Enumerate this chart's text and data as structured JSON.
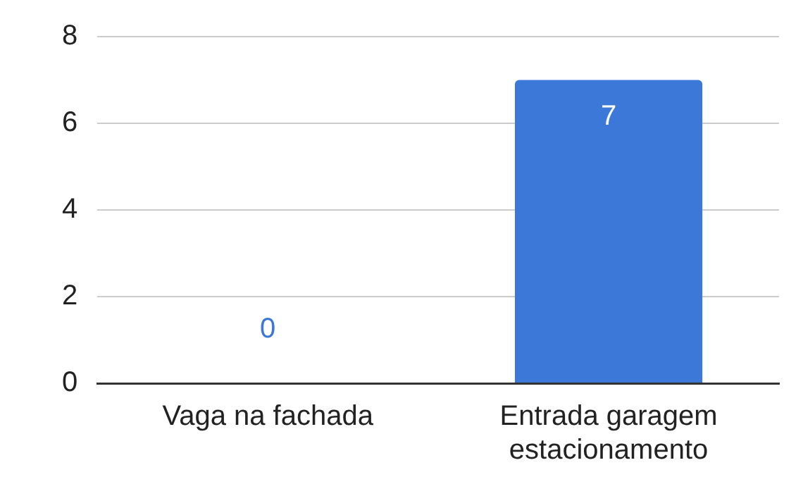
{
  "chart_data": {
    "type": "bar",
    "categories": [
      "Vaga na fachada",
      "Entrada garagem estacionamento"
    ],
    "values": [
      0,
      7
    ],
    "color": "#3c78d8",
    "ylim": [
      0,
      8
    ],
    "yticks": [
      0,
      2,
      4,
      6,
      8
    ],
    "grid": "y",
    "data_labels": true
  }
}
